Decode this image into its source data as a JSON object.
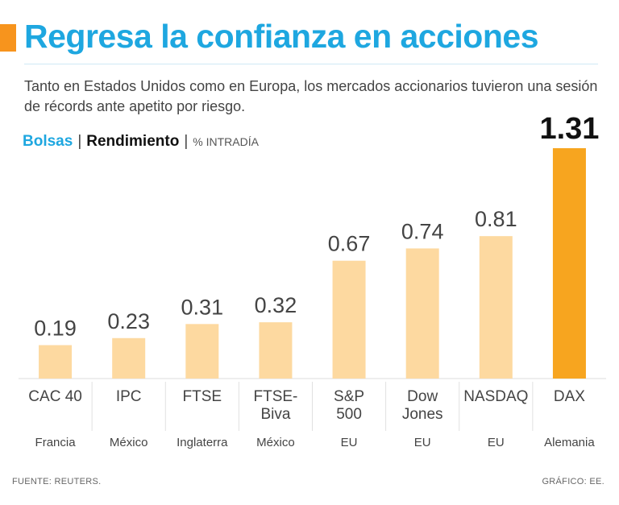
{
  "title": "Regresa la confianza en acciones",
  "subtitle": "Tanto en Estados Unidos como en Europa, los mercados accionarios tuvieron una sesión de récords ante apetito por riesgo.",
  "legend": {
    "label1": "Bolsas",
    "separator": "|",
    "label2": "Rendimiento",
    "separator2": "|",
    "label3": "% INTRADÍA"
  },
  "source": "FUENTE: REUTERS.",
  "credit": "GRÁFICO:  EE.",
  "colors": {
    "title": "#1ea7e0",
    "accent": "#f7941d",
    "bar": "#fdd9a0",
    "bar_highlight": "#f7a51f"
  },
  "chart_data": {
    "type": "bar",
    "title": "Regresa la confianza en acciones",
    "ylabel": "Rendimiento % intradía",
    "xlabel": "",
    "ylim": [
      0,
      1.4
    ],
    "grid": false,
    "categories": [
      {
        "name": "CAC 40",
        "country": "Francia"
      },
      {
        "name": "IPC",
        "country": "México"
      },
      {
        "name": "FTSE",
        "country": "Inglaterra"
      },
      {
        "name": "FTSE-Biva",
        "country": "México"
      },
      {
        "name": "S&P 500",
        "country": "EU"
      },
      {
        "name": "Dow Jones",
        "country": "EU"
      },
      {
        "name": "NASDAQ",
        "country": "EU"
      },
      {
        "name": "DAX",
        "country": "Alemania"
      }
    ],
    "values": [
      0.19,
      0.23,
      0.31,
      0.32,
      0.67,
      0.74,
      0.81,
      1.31
    ],
    "value_labels": [
      "0.19",
      "0.23",
      "0.31",
      "0.32",
      "0.67",
      "0.74",
      "0.81",
      "1.31"
    ],
    "highlight": "DAX"
  }
}
